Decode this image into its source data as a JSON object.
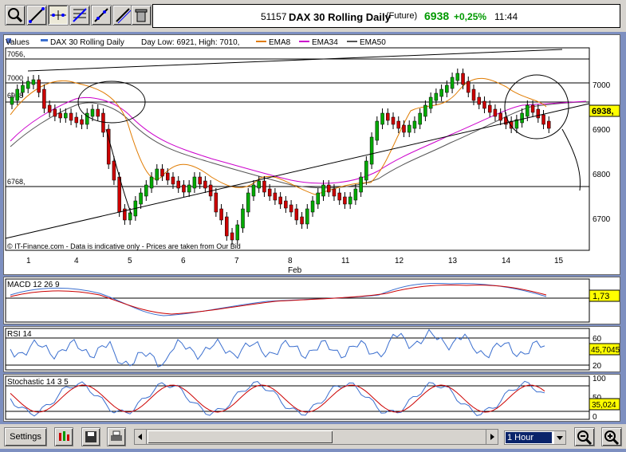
{
  "toolbar": {
    "icons": [
      "zoom-in-icon",
      "draw-line-icon",
      "crosshair-icon",
      "fibonacci-icon",
      "trend-icon",
      "line-icon",
      "trash-icon"
    ],
    "title": {
      "code": "51157",
      "name": "DAX 30  Rolling Daily",
      "type": "(Future)",
      "price": "6938",
      "change": "+0,25%",
      "time": "11:44",
      "price_color": "#009900",
      "change_color": "#009900"
    }
  },
  "main_chart": {
    "legend": {
      "values": "Values",
      "series": "DAX 30  Rolling Daily",
      "daylow": "Day Low: 6921, High: 7010,",
      "ema8": "EMA8",
      "ema34": "EMA34",
      "ema50": "EMA50"
    },
    "left_labels": {
      "top": "7056,",
      "mid1": "7000",
      "mid2": "6938",
      "low": "6768,"
    },
    "right_labels": [
      "7000",
      "6900",
      "6800",
      "6700"
    ],
    "price_tag": "6938,",
    "credit": "© IT-Finance.com - Data is indicative only - Prices are taken from Our Bid",
    "x_labels": [
      "1",
      "4",
      "5",
      "6",
      "7",
      "8",
      "11",
      "12",
      "13",
      "14",
      "15"
    ],
    "month": "Feb"
  },
  "chart_data": {
    "type": "candlestick",
    "ylim": [
      6630,
      7075
    ],
    "y_ticks": [
      7000,
      6900,
      6800,
      6700
    ],
    "horizontal_levels": [
      7056,
      7000,
      6938,
      6768
    ],
    "series": [
      {
        "name": "EMA8",
        "color": "#e07b00"
      },
      {
        "name": "EMA34",
        "color": "#cc00cc"
      },
      {
        "name": "EMA50",
        "color": "#555555"
      }
    ],
    "x_categories": [
      "1",
      "4",
      "5",
      "6",
      "7",
      "8",
      "11",
      "12",
      "13",
      "14",
      "15"
    ],
    "last_price": 6938
  },
  "macd": {
    "label": "MACD 12 26 9",
    "value": "1,73"
  },
  "rsi": {
    "label": "RSI 14",
    "levels": [
      "60",
      "20"
    ],
    "value": "45,7045"
  },
  "stochastic": {
    "label": "Stochastic 14 3 5",
    "levels": [
      "100",
      "50",
      "0"
    ],
    "value": "35,024"
  },
  "bottom": {
    "settings_label": "Settings",
    "timeframe": "1 Hour"
  }
}
